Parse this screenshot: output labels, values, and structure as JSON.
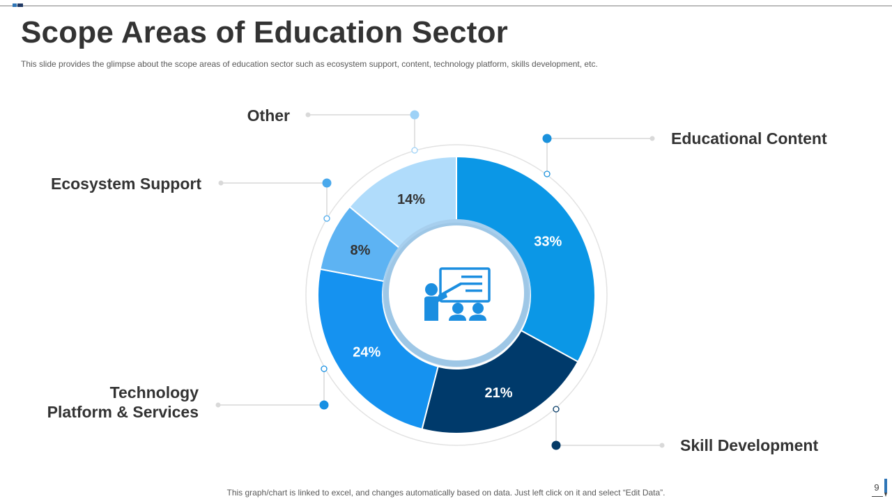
{
  "slide": {
    "title": "Scope Areas of Education Sector",
    "subtitle": "This slide provides the glimpse about the scope areas of education sector such as ecosystem support, content, technology platform, skills development, etc.",
    "footer_note": "This graph/chart is linked to excel,  and changes automatically based on data. Just left click on it and select “Edit Data”.",
    "page_number": "9"
  },
  "chart_data": {
    "type": "pie",
    "style": "donut",
    "center_icon": "teacher-presentation-icon",
    "categories": [
      "Educational Content",
      "Skill Development",
      "Technology Platform & Services",
      "Ecosystem Support",
      "Other"
    ],
    "values": [
      33,
      21,
      24,
      8,
      14
    ],
    "value_labels": [
      "33%",
      "21%",
      "24%",
      "8%",
      "14%"
    ],
    "colors": [
      "#0b97e6",
      "#003a6b",
      "#1592f0",
      "#5db3f3",
      "#b0dcfb"
    ],
    "value_label_colors": [
      "#ffffff",
      "#ffffff",
      "#ffffff",
      "#333333",
      "#333333"
    ],
    "callout_colors": [
      "#1a91dc",
      "#053b67",
      "#1790e3",
      "#4aa9ec",
      "#9ed2f7"
    ]
  }
}
